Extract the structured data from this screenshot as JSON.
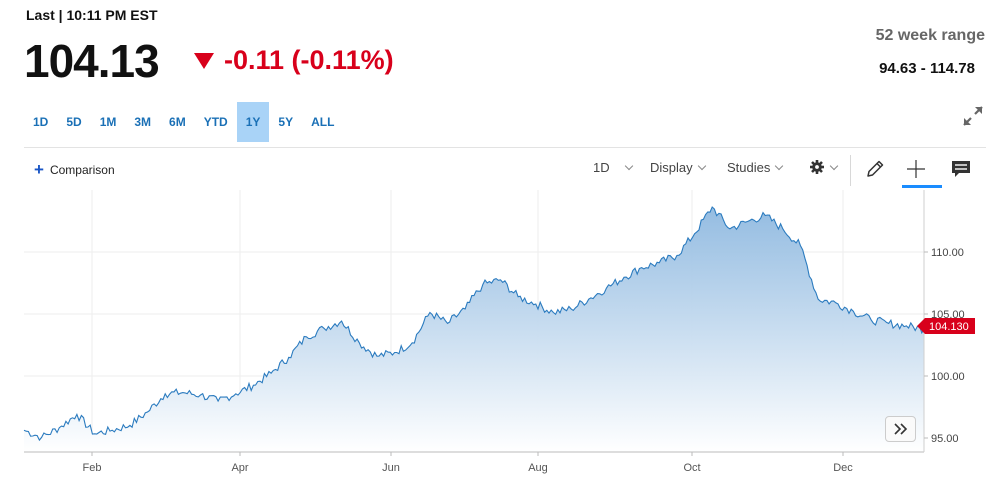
{
  "header": {
    "last_label": "Last | 10:11 PM EST",
    "price": "104.13",
    "change": "-0.11 (-0.11%)",
    "week52_label": "52 week range",
    "week52_value": "94.63 - 114.78"
  },
  "range_tabs": [
    {
      "label": "1D",
      "active": false
    },
    {
      "label": "5D",
      "active": false
    },
    {
      "label": "1M",
      "active": false
    },
    {
      "label": "3M",
      "active": false
    },
    {
      "label": "6M",
      "active": false
    },
    {
      "label": "YTD",
      "active": false
    },
    {
      "label": "1Y",
      "active": true
    },
    {
      "label": "5Y",
      "active": false
    },
    {
      "label": "ALL",
      "active": false
    }
  ],
  "toolbar": {
    "comparison": "Comparison",
    "interval": "1D",
    "display": "Display",
    "studies": "Studies"
  },
  "colors": {
    "accent": "#1a70b6",
    "down": "#d8001b",
    "line": "#2b7bbf",
    "active_tab": "#a9d3f7"
  },
  "icons": [
    "plus-icon",
    "gear-icon",
    "pencil-icon",
    "crosshair-icon",
    "comment-icon",
    "expand-icon",
    "double-chevron-right-icon",
    "down-triangle-icon"
  ],
  "chart_data": {
    "type": "area",
    "x": [
      "Jan 2",
      "Jan 9",
      "Jan 16",
      "Jan 23",
      "Jan 30",
      "Feb 6",
      "Feb 13",
      "Feb 20",
      "Feb 27",
      "Mar 6",
      "Mar 13",
      "Mar 20",
      "Mar 27",
      "Apr 3",
      "Apr 10",
      "Apr 17",
      "Apr 24",
      "May 1",
      "May 8",
      "May 15",
      "May 22",
      "May 29",
      "Jun 5",
      "Jun 12",
      "Jun 19",
      "Jun 26",
      "Jul 3",
      "Jul 10",
      "Jul 17",
      "Jul 24",
      "Jul 31",
      "Aug 7",
      "Aug 14",
      "Aug 21",
      "Aug 28",
      "Sep 4",
      "Sep 11",
      "Sep 18",
      "Sep 25",
      "Oct 2",
      "Oct 9",
      "Oct 16",
      "Oct 23",
      "Oct 30",
      "Nov 6",
      "Nov 13",
      "Nov 20",
      "Nov 27",
      "Dec 4",
      "Dec 11",
      "Dec 18",
      "Dec 27"
    ],
    "series": [
      {
        "values": [
          95.8,
          95.2,
          96.0,
          97.1,
          95.5,
          95.8,
          96.2,
          97.3,
          98.8,
          98.9,
          98.7,
          98.2,
          98.8,
          99.5,
          100.5,
          101.8,
          103.5,
          104.2,
          104.8,
          103.0,
          101.9,
          102.2,
          103.0,
          105.5,
          104.6,
          105.8,
          107.8,
          108.2,
          106.8,
          106.2,
          105.5,
          105.8,
          106.6,
          107.5,
          108.4,
          109.2,
          109.6,
          110.2,
          112.0,
          114.2,
          112.4,
          113.0,
          113.5,
          112.4,
          111.0,
          106.6,
          106.3,
          105.6,
          104.9,
          104.6,
          104.4,
          104.13
        ]
      }
    ],
    "x_tick_labels": [
      "Feb",
      "Apr",
      "Jun",
      "Aug",
      "Oct",
      "Dec"
    ],
    "y_tick_labels": [
      "95.00",
      "100.00",
      "105.00",
      "110.00"
    ],
    "last_value_label": "104.130",
    "ylim": [
      94.0,
      115.6
    ],
    "grid": true
  }
}
